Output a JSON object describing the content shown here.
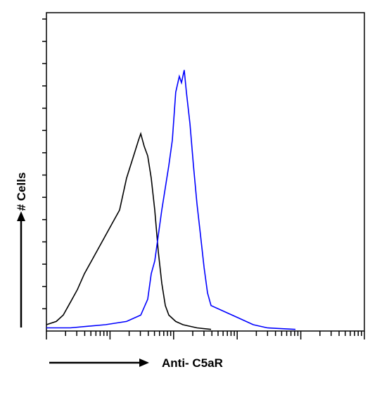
{
  "chart_data": {
    "type": "line",
    "x_label": "Anti- C5aR",
    "y_label": "# Cells",
    "xlog": true,
    "xlim": [
      1,
      100000
    ],
    "ylim": [
      0,
      100
    ],
    "xticks": [
      1,
      2,
      3,
      4,
      5,
      6,
      7,
      8,
      9,
      10,
      20,
      30,
      40,
      50,
      60,
      70,
      80,
      90,
      100,
      200,
      300,
      400,
      500,
      600,
      700,
      800,
      900,
      1000,
      2000,
      3000,
      4000,
      5000,
      6000,
      7000,
      8000,
      9000,
      10000,
      20000,
      30000,
      40000,
      50000,
      60000,
      70000,
      80000,
      90000,
      100000
    ],
    "yticks": [
      7,
      14,
      21,
      28,
      35,
      42,
      49,
      56,
      63,
      70,
      77,
      84,
      91,
      98
    ],
    "series": [
      {
        "color": "#000000",
        "x": [
          1,
          1.43,
          1.84,
          2.38,
          3.07,
          3.96,
          5.1,
          6.59,
          8.5,
          10.96,
          14.14,
          18.2,
          23.5,
          28.1,
          30.4,
          34.5,
          39.2,
          44.5,
          50.5,
          57.4,
          65.2,
          74,
          84.1,
          108,
          140,
          233,
          388
        ],
        "values": [
          2,
          3,
          5,
          9,
          13,
          18,
          22,
          26,
          30,
          34,
          38,
          48,
          55,
          60,
          62,
          58,
          55,
          48,
          38,
          25,
          15,
          8,
          5,
          3,
          2,
          1,
          0.5
        ]
      },
      {
        "color": "#0000ff",
        "x": [
          1,
          2.38,
          8.5,
          18.2,
          30.4,
          39.2,
          44.5,
          50.5,
          57.4,
          65.2,
          74,
          84.1,
          95.5,
          108,
          123,
          133,
          147,
          159,
          181,
          205,
          233,
          265,
          301,
          341,
          388,
          646,
          1074,
          1787,
          2972,
          8240
        ],
        "values": [
          1,
          1,
          2,
          3,
          5,
          10,
          18,
          22,
          30,
          38,
          45,
          52,
          60,
          75,
          80,
          78,
          82,
          75,
          65,
          52,
          40,
          30,
          20,
          12,
          8,
          6,
          4,
          2,
          1,
          0.5
        ]
      }
    ]
  }
}
